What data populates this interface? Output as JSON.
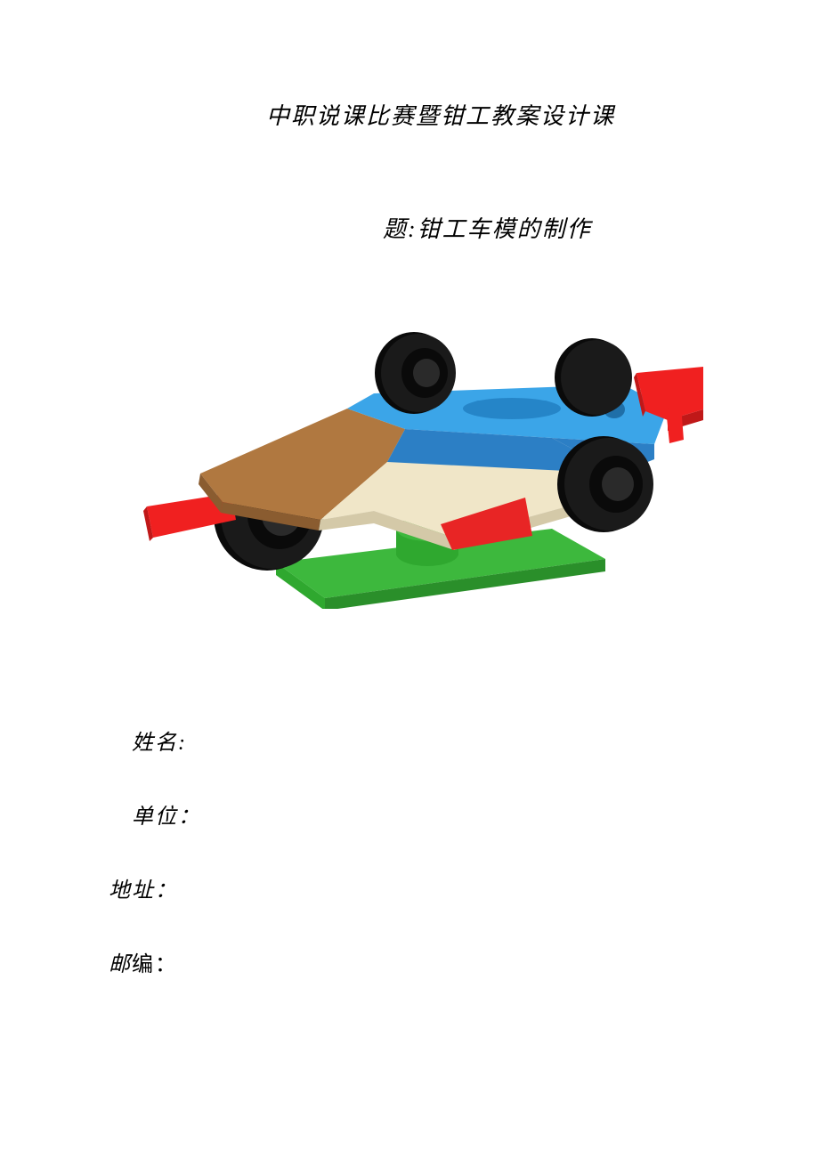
{
  "title": "中职说课比赛暨钳工教案设计课",
  "subtitle": "题:钳工车模的制作",
  "fields": {
    "name_label": "姓名:",
    "unit_label": "单位：",
    "address_label": "地址：",
    "postcode_label": "邮编："
  },
  "car_model": {
    "type": "3d_render",
    "description": "F1 race car model on green base",
    "colors": {
      "base_top": "#3db83d",
      "base_side": "#2a8f2a",
      "base_pedestal": "#2fa82f",
      "wheel_tire": "#1a1a1a",
      "wheel_rim": "#0a0a0a",
      "wheel_hub": "#2a2a2a",
      "body_blue_top": "#3ba5e8",
      "body_blue_side": "#2c7fc5",
      "body_beige_top": "#f0e6c8",
      "body_beige_side": "#d4c9a8",
      "body_brown_top": "#b07840",
      "body_brown_side": "#8a5c30",
      "wing_red": "#f02020",
      "wing_red_dark": "#c01818",
      "accent_red": "#e82525",
      "slot_blue": "#2585c8",
      "hole_blue": "#1f6fa8"
    },
    "text_colors": {
      "title": "#000000",
      "fields": "#000000"
    },
    "background": "#ffffff"
  }
}
